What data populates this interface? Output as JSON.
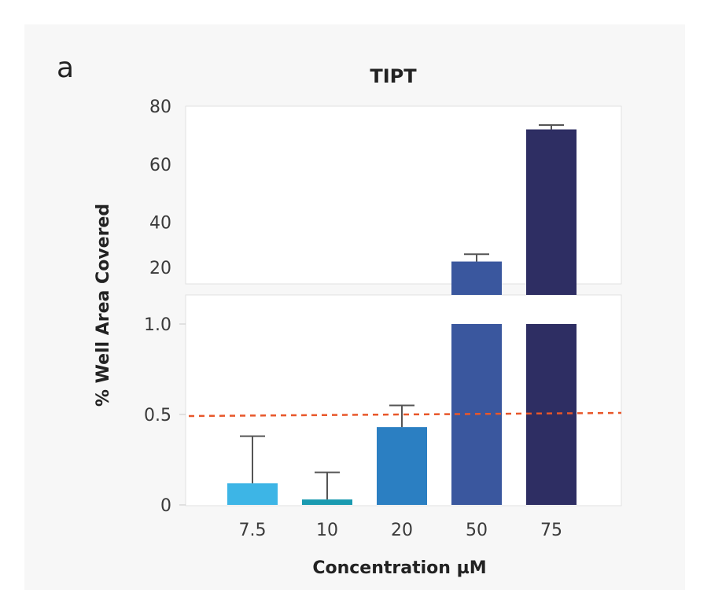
{
  "chart_data": {
    "type": "bar",
    "panel_label": "a",
    "title": "TIPT",
    "xlabel": "Concentration µM",
    "ylabel": "% Well Area Covered",
    "categories": [
      "7.5",
      "10",
      "20",
      "50",
      "75"
    ],
    "values": [
      0.12,
      0.03,
      0.43,
      26.5,
      72
    ],
    "error_upper": [
      0.38,
      0.18,
      0.55,
      29,
      73.5
    ],
    "colors": [
      "#3db5e6",
      "#1a9ab0",
      "#2b7fc2",
      "#3a579e",
      "#2e2e63"
    ],
    "y_axis": {
      "broken": true,
      "lower_segment": {
        "ylim": [
          0,
          1.0
        ],
        "ticks": [
          "0",
          "0.5",
          "1.0"
        ]
      },
      "upper_segment": {
        "ylim": [
          15,
          80
        ],
        "ticks": [
          "20",
          "40",
          "60",
          "80"
        ]
      }
    },
    "threshold_line": {
      "value": 0.5,
      "style": "dashed",
      "color": "#e8572a"
    },
    "grid": false,
    "legend": "none"
  }
}
